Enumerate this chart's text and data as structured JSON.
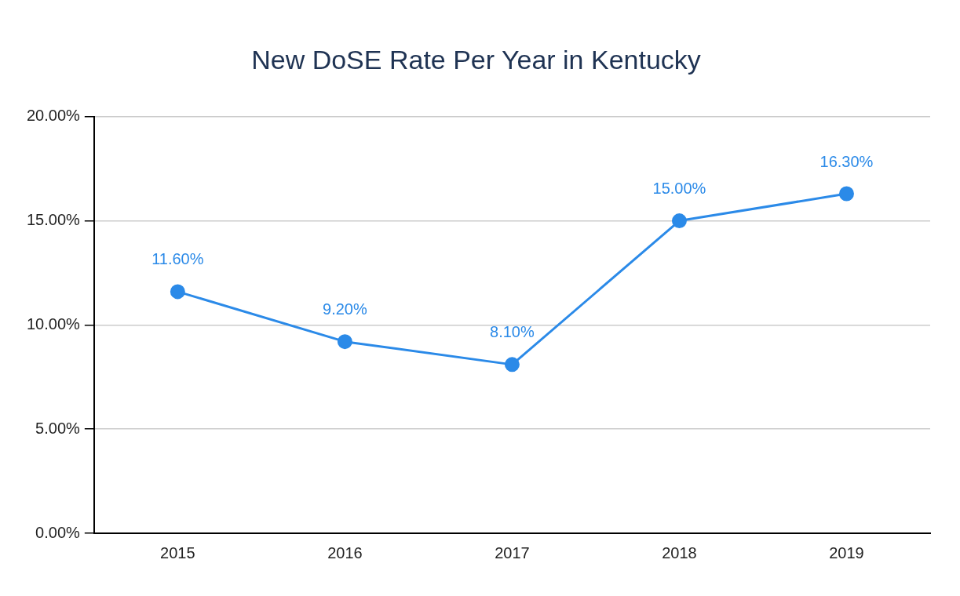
{
  "chart_data": {
    "type": "line",
    "title": "New DoSE Rate Per Year in Kentucky",
    "categories": [
      "2015",
      "2016",
      "2017",
      "2018",
      "2019"
    ],
    "series": [
      {
        "color": "#2b8ae8",
        "values": [
          11.6,
          9.2,
          8.1,
          15.0,
          16.3
        ],
        "value_labels": [
          "11.60%",
          "9.20%",
          "8.10%",
          "15.00%",
          "16.30%"
        ]
      }
    ],
    "ylim": [
      0,
      20
    ],
    "yticks": [
      {
        "value": 0,
        "label": "0.00%"
      },
      {
        "value": 5,
        "label": "5.00%"
      },
      {
        "value": 10,
        "label": "10.00%"
      },
      {
        "value": 15,
        "label": "15.00%"
      },
      {
        "value": 20,
        "label": "20.00%"
      }
    ],
    "grid": "y",
    "legend": false,
    "marker": "circle",
    "line_style": "solid"
  }
}
